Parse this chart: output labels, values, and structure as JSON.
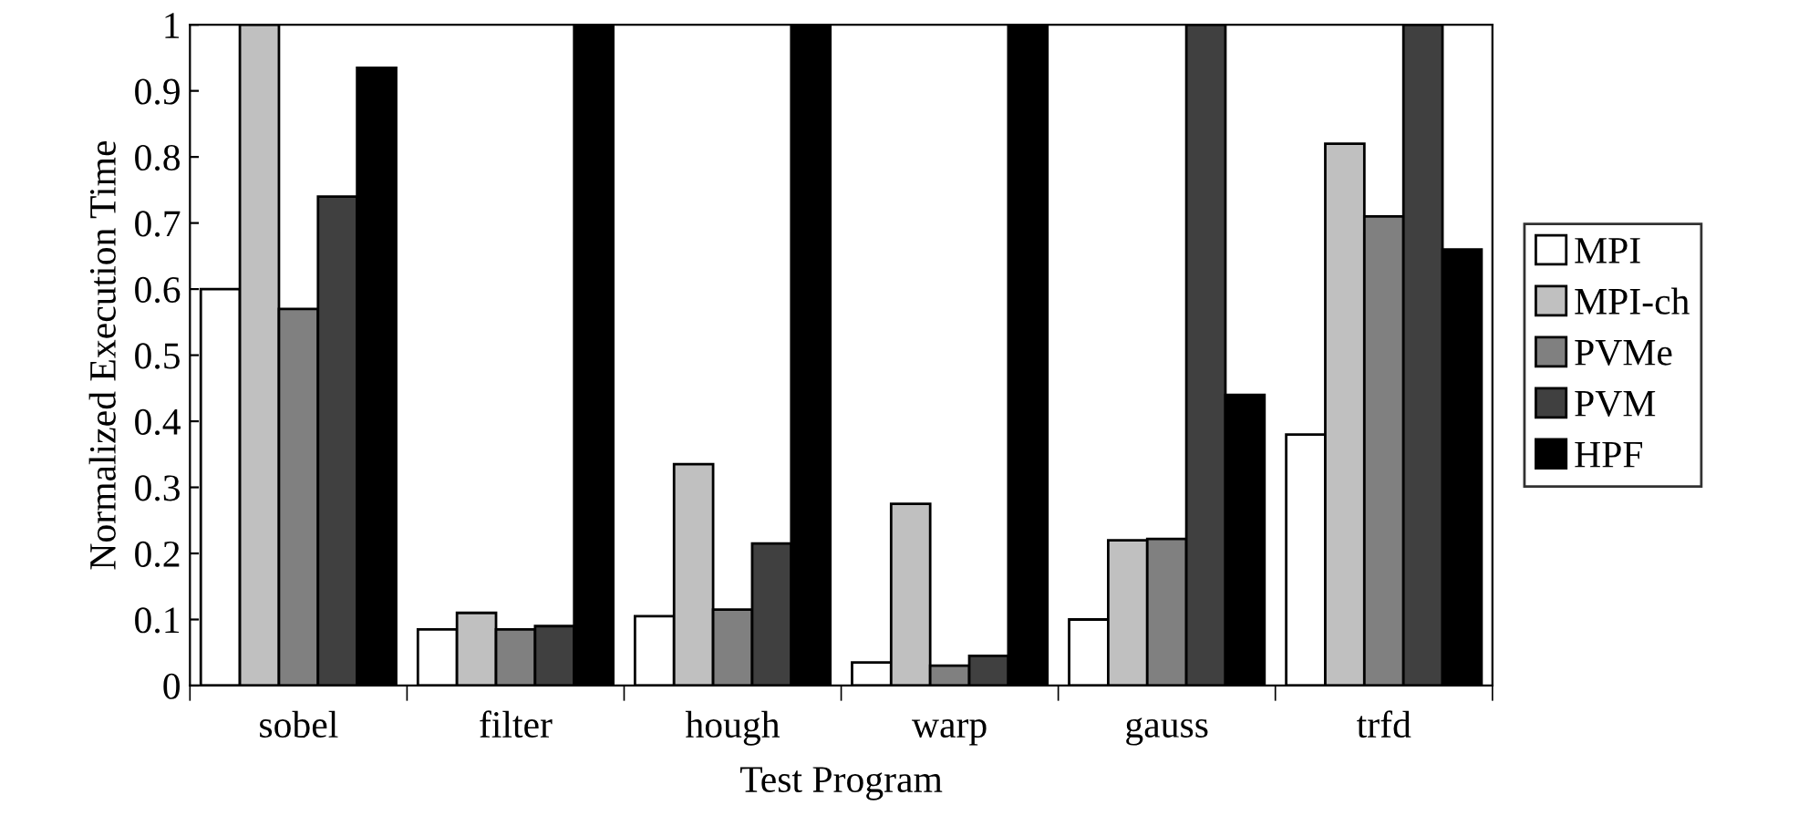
{
  "chart_data": {
    "type": "bar",
    "xlabel": "Test Program",
    "ylabel": "Normalized Execution Time",
    "categories": [
      "sobel",
      "filter",
      "hough",
      "warp",
      "gauss",
      "trfd"
    ],
    "series": [
      {
        "name": "MPI",
        "color": "#ffffff",
        "values": [
          0.6,
          0.085,
          0.105,
          0.035,
          0.1,
          0.38
        ]
      },
      {
        "name": "MPI-ch",
        "color": "#c0c0c0",
        "values": [
          1.0,
          0.11,
          0.335,
          0.275,
          0.22,
          0.82
        ]
      },
      {
        "name": "PVMe",
        "color": "#808080",
        "values": [
          0.57,
          0.085,
          0.115,
          0.03,
          0.222,
          0.71
        ]
      },
      {
        "name": "PVM",
        "color": "#404040",
        "values": [
          0.74,
          0.09,
          0.215,
          0.045,
          1.0,
          1.0
        ]
      },
      {
        "name": "HPF",
        "color": "#000000",
        "values": [
          0.935,
          1.0,
          1.0,
          1.0,
          0.44,
          0.66
        ]
      }
    ],
    "ylim": [
      0,
      1
    ],
    "yticks": [
      0,
      0.1,
      0.2,
      0.3,
      0.4,
      0.5,
      0.6,
      0.7,
      0.8,
      0.9,
      1
    ],
    "grid": false,
    "legend": "right"
  }
}
